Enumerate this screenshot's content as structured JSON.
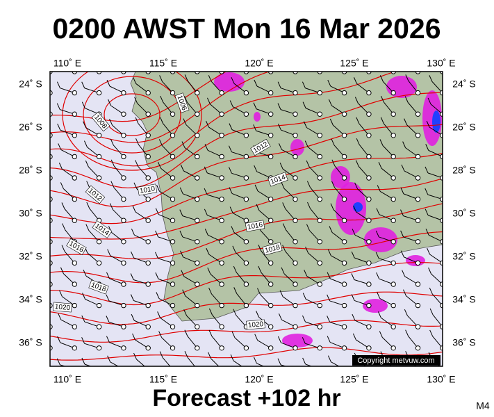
{
  "title": "0200 AWST Mon 16 Mar 2026",
  "footer": "Forecast +102 hr",
  "model": "M4",
  "copyright": "Copyright metvuw.com",
  "lon_labels": [
    "110˚ E",
    "115˚ E",
    "120˚ E",
    "125˚ E",
    "130˚ E"
  ],
  "lat_labels": [
    "24˚ S",
    "26˚ S",
    "28˚ S",
    "30˚ S",
    "32˚ S",
    "34˚ S",
    "36˚ S"
  ],
  "isobar_labels": [
    "1006",
    "1008",
    "1012",
    "1014",
    "1010",
    "1012",
    "1014",
    "1016",
    "1016",
    "1018",
    "1018",
    "1020",
    "1020"
  ]
}
